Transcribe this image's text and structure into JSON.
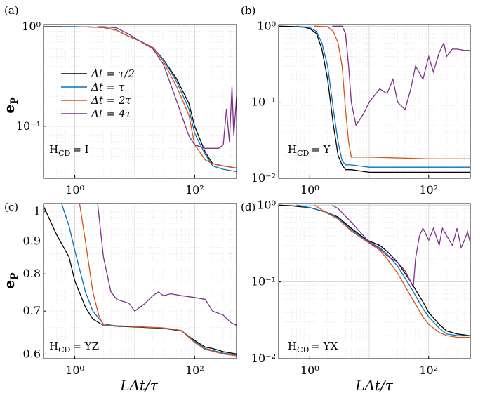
{
  "figure": {
    "xlabel": "LΔt/τ",
    "ylabel": "e",
    "ylabel_sub": "P"
  },
  "legend": [
    {
      "label": "Δt = τ/2",
      "color": "#000000"
    },
    {
      "label": "Δt = τ",
      "color": "#0072BD"
    },
    {
      "label": "Δt = 2τ",
      "color": "#D95319"
    },
    {
      "label": "Δt = 4τ",
      "color": "#7E2F8E"
    }
  ],
  "chart_data": [
    {
      "panel": "(a)",
      "type": "line",
      "annotation_main": "H",
      "annotation_sub": "CD",
      "annotation_value": "= I",
      "xscale": "log",
      "yscale": "log",
      "xlim": [
        0.3,
        500
      ],
      "ylim": [
        0.03,
        1.05
      ],
      "xticks": [
        1,
        100
      ],
      "xticklabels": [
        "10⁰",
        "10²"
      ],
      "yticks": [
        0.1,
        1
      ],
      "yticklabels": [
        "10⁻¹",
        "10⁰"
      ],
      "series": [
        {
          "name": "Δt = τ/2",
          "x": [
            0.3,
            0.5,
            1,
            2,
            3,
            5,
            8,
            12,
            20,
            30,
            50,
            80,
            100,
            150,
            200,
            300,
            500
          ],
          "y": [
            1,
            1,
            1,
            0.99,
            0.98,
            0.92,
            0.8,
            0.72,
            0.62,
            0.47,
            0.3,
            0.17,
            0.1,
            0.055,
            0.042,
            0.04,
            0.038
          ]
        },
        {
          "name": "Δt = τ",
          "x": [
            0.6,
            1,
            2,
            3,
            5,
            8,
            12,
            20,
            30,
            50,
            80,
            100,
            150,
            200,
            300,
            500
          ],
          "y": [
            1,
            1,
            0.99,
            0.98,
            0.92,
            0.8,
            0.72,
            0.62,
            0.47,
            0.28,
            0.15,
            0.085,
            0.052,
            0.04,
            0.037,
            0.035
          ]
        },
        {
          "name": "Δt = 2τ",
          "x": [
            1.2,
            2,
            3,
            5,
            8,
            12,
            20,
            30,
            50,
            80,
            100,
            150,
            200,
            300,
            500
          ],
          "y": [
            1,
            0.99,
            0.98,
            0.92,
            0.8,
            0.72,
            0.62,
            0.45,
            0.25,
            0.13,
            0.065,
            0.046,
            0.042,
            0.04,
            0.038
          ]
        },
        {
          "name": "Δt = 4τ",
          "x": [
            2.4,
            3,
            5,
            8,
            12,
            20,
            30,
            50,
            80,
            100,
            150,
            200,
            250,
            300,
            340,
            380,
            420,
            450,
            500
          ],
          "y": [
            1,
            1,
            0.97,
            0.84,
            0.72,
            0.6,
            0.42,
            0.18,
            0.08,
            0.065,
            0.06,
            0.06,
            0.06,
            0.065,
            0.15,
            0.07,
            0.25,
            0.08,
            0.2
          ]
        }
      ]
    },
    {
      "panel": "(b)",
      "type": "line",
      "annotation_main": "H",
      "annotation_sub": "CD",
      "annotation_value": "= Y",
      "xscale": "log",
      "yscale": "log",
      "xlim": [
        0.3,
        500
      ],
      "ylim": [
        0.01,
        1.05
      ],
      "xticks": [
        1,
        100
      ],
      "xticklabels": [
        "10⁰",
        "10²"
      ],
      "yticks": [
        0.01,
        0.1,
        1
      ],
      "yticklabels": [
        "10⁻²",
        "10⁻¹",
        "10⁰"
      ],
      "series": [
        {
          "name": "Δt = τ/2",
          "x": [
            0.3,
            0.5,
            0.8,
            1,
            1.3,
            1.6,
            2,
            2.5,
            3,
            3.5,
            4,
            5,
            10,
            100,
            500
          ],
          "y": [
            1,
            0.99,
            0.97,
            0.93,
            0.8,
            0.5,
            0.2,
            0.05,
            0.02,
            0.015,
            0.013,
            0.013,
            0.012,
            0.012,
            0.012
          ]
        },
        {
          "name": "Δt = τ",
          "x": [
            0.6,
            1,
            1.3,
            1.6,
            2,
            2.5,
            3,
            3.5,
            4,
            5,
            10,
            100,
            500
          ],
          "y": [
            1,
            0.96,
            0.85,
            0.6,
            0.3,
            0.08,
            0.03,
            0.017,
            0.015,
            0.015,
            0.014,
            0.014,
            0.014
          ]
        },
        {
          "name": "Δt = 2τ",
          "x": [
            1.2,
            2,
            2.5,
            3,
            3.5,
            4,
            4.5,
            5,
            10,
            100,
            500
          ],
          "y": [
            1,
            0.98,
            0.85,
            0.6,
            0.3,
            0.08,
            0.03,
            0.019,
            0.019,
            0.018,
            0.018
          ]
        },
        {
          "name": "Δt = 4τ",
          "x": [
            2.4,
            3.5,
            4,
            4.5,
            5,
            6,
            8,
            10,
            15,
            20,
            25,
            30,
            40,
            50,
            60,
            80,
            100,
            120,
            150,
            180,
            200,
            250,
            300,
            400,
            500
          ],
          "y": [
            1,
            1,
            0.8,
            0.3,
            0.1,
            0.05,
            0.07,
            0.1,
            0.15,
            0.13,
            0.2,
            0.1,
            0.08,
            0.15,
            0.3,
            0.2,
            0.4,
            0.25,
            0.45,
            0.6,
            0.4,
            0.5,
            0.5,
            0.48,
            0.48
          ]
        }
      ]
    },
    {
      "panel": "(c)",
      "type": "line",
      "annotation_main": "H",
      "annotation_sub": "CD",
      "annotation_value": "= YZ",
      "xscale": "log",
      "yscale": "log",
      "xlim": [
        0.3,
        500
      ],
      "ylim": [
        0.59,
        1.03
      ],
      "xticks": [
        1,
        100
      ],
      "xticklabels": [
        "10⁰",
        "10²"
      ],
      "yticks": [
        0.6,
        0.7,
        0.8,
        0.9,
        1
      ],
      "yticklabels": [
        "0.6",
        "0.7",
        "0.8",
        "0.9",
        "1"
      ],
      "series": [
        {
          "name": "Δt = τ/2",
          "x": [
            0.3,
            0.5,
            0.8,
            1,
            1.5,
            2,
            3,
            5,
            10,
            30,
            60,
            100,
            150,
            200,
            300,
            500
          ],
          "y": [
            1.02,
            0.92,
            0.85,
            0.78,
            0.71,
            0.68,
            0.665,
            0.663,
            0.661,
            0.658,
            0.652,
            0.63,
            0.615,
            0.612,
            0.605,
            0.6
          ]
        },
        {
          "name": "Δt = τ",
          "x": [
            0.6,
            0.8,
            1,
            1.5,
            2,
            3,
            5,
            10,
            30,
            60,
            100,
            150,
            200,
            300,
            500
          ],
          "y": [
            1.03,
            0.95,
            0.87,
            0.75,
            0.7,
            0.668,
            0.664,
            0.662,
            0.659,
            0.653,
            0.628,
            0.612,
            0.608,
            0.602,
            0.598
          ]
        },
        {
          "name": "Δt = 2τ",
          "x": [
            1.2,
            1.5,
            2,
            2.5,
            3,
            5,
            10,
            30,
            60,
            100,
            150,
            200,
            300,
            500
          ],
          "y": [
            1.03,
            0.9,
            0.75,
            0.69,
            0.665,
            0.664,
            0.662,
            0.659,
            0.653,
            0.625,
            0.61,
            0.606,
            0.6,
            0.596
          ]
        },
        {
          "name": "Δt = 4τ",
          "x": [
            2.4,
            3,
            4,
            5,
            8,
            10,
            15,
            20,
            25,
            30,
            40,
            60,
            100,
            150,
            200,
            300,
            400,
            500
          ],
          "y": [
            1.03,
            0.85,
            0.75,
            0.73,
            0.72,
            0.7,
            0.72,
            0.74,
            0.75,
            0.74,
            0.745,
            0.74,
            0.735,
            0.73,
            0.7,
            0.69,
            0.672,
            0.665
          ]
        }
      ]
    },
    {
      "panel": "(d)",
      "type": "line",
      "annotation_main": "H",
      "annotation_sub": "CD",
      "annotation_value": "= YX",
      "xscale": "log",
      "yscale": "log",
      "xlim": [
        0.3,
        500
      ],
      "ylim": [
        0.01,
        1.05
      ],
      "xticks": [
        1,
        100
      ],
      "xticklabels": [
        "10⁰",
        "10²"
      ],
      "yticks": [
        0.01,
        0.1,
        1
      ],
      "yticklabels": [
        "10⁻²",
        "10⁻¹",
        "10⁰"
      ],
      "series": [
        {
          "name": "Δt = τ/2",
          "x": [
            0.3,
            0.5,
            1,
            2,
            3,
            5,
            8,
            10,
            15,
            20,
            30,
            50,
            80,
            100,
            150,
            200,
            300,
            500
          ],
          "y": [
            1,
            0.98,
            0.93,
            0.8,
            0.7,
            0.5,
            0.38,
            0.34,
            0.3,
            0.25,
            0.18,
            0.1,
            0.055,
            0.04,
            0.028,
            0.023,
            0.021,
            0.02
          ]
        },
        {
          "name": "Δt = τ",
          "x": [
            0.6,
            1,
            2,
            3,
            5,
            8,
            10,
            15,
            20,
            30,
            50,
            80,
            100,
            150,
            200,
            300,
            500
          ],
          "y": [
            1,
            0.93,
            0.8,
            0.68,
            0.48,
            0.37,
            0.33,
            0.28,
            0.23,
            0.16,
            0.085,
            0.045,
            0.035,
            0.025,
            0.021,
            0.02,
            0.02
          ]
        },
        {
          "name": "Δt = 2τ",
          "x": [
            1.2,
            2,
            3,
            5,
            8,
            10,
            15,
            20,
            30,
            50,
            80,
            100,
            150,
            200,
            300,
            500
          ],
          "y": [
            1,
            0.78,
            0.66,
            0.46,
            0.36,
            0.32,
            0.26,
            0.2,
            0.13,
            0.065,
            0.035,
            0.028,
            0.022,
            0.02,
            0.019,
            0.019
          ]
        },
        {
          "name": "Δt = 4τ",
          "x": [
            2.4,
            3,
            5,
            8,
            10,
            15,
            20,
            30,
            40,
            50,
            55,
            60,
            70,
            80,
            100,
            120,
            150,
            170,
            200,
            250,
            300,
            350,
            400,
            450,
            500
          ],
          "y": [
            1,
            0.9,
            0.6,
            0.4,
            0.33,
            0.27,
            0.22,
            0.18,
            0.14,
            0.1,
            0.085,
            0.2,
            0.4,
            0.5,
            0.35,
            0.5,
            0.3,
            0.5,
            0.4,
            0.3,
            0.5,
            0.28,
            0.35,
            0.45,
            0.32
          ]
        }
      ]
    }
  ]
}
